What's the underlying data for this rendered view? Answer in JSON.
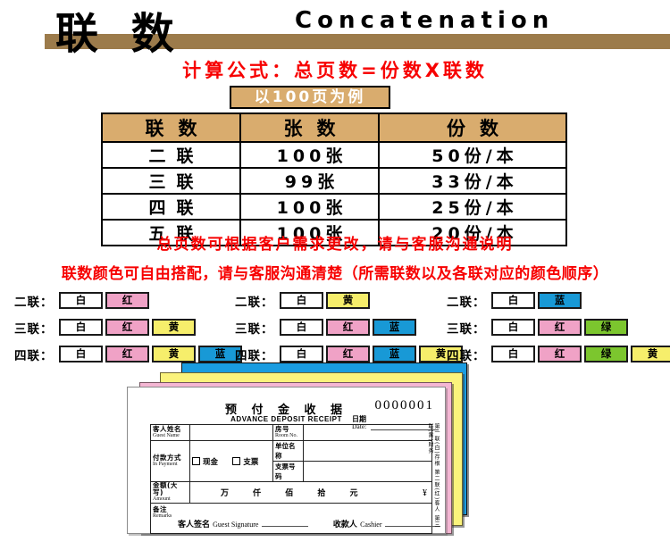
{
  "header": {
    "title_cn": "联 数",
    "title_en": "Concatenation",
    "bar_color": "#9c7b4b"
  },
  "formula": "计算公式：总页数=份数X联数",
  "example_badge": "以100页为例",
  "table": {
    "headers": [
      "联数",
      "张数",
      "份数"
    ],
    "rows": [
      [
        "二联",
        "100张",
        "50份/本"
      ],
      [
        "三联",
        "99张",
        "33份/本"
      ],
      [
        "四联",
        "100张",
        "25份/本"
      ],
      [
        "五联",
        "100张",
        "20份/本"
      ]
    ]
  },
  "notes": [
    "总页数可根据客户需求更改，请与客服沟通说明",
    "联数颜色可自由搭配，请与客服沟通清楚（所需联数以及各联对应的颜色顺序）"
  ],
  "color_map": {
    "白": "#ffffff",
    "红": "#f0a2c6",
    "黄": "#f6ee6b",
    "蓝": "#1899d6",
    "绿": "#7cc62e"
  },
  "swatch_columns": [
    {
      "groups": [
        {
          "label": "二联：",
          "colors": [
            "白",
            "红"
          ]
        },
        {
          "label": "三联：",
          "colors": [
            "白",
            "红",
            "黄"
          ]
        },
        {
          "label": "四联：",
          "colors": [
            "白",
            "红",
            "黄",
            "蓝"
          ]
        }
      ]
    },
    {
      "groups": [
        {
          "label": "二联：",
          "colors": [
            "白",
            "黄"
          ]
        },
        {
          "label": "三联：",
          "colors": [
            "白",
            "红",
            "蓝"
          ]
        },
        {
          "label": "四联：",
          "colors": [
            "白",
            "红",
            "蓝",
            "黄"
          ]
        }
      ]
    },
    {
      "groups": [
        {
          "label": "二联：",
          "colors": [
            "白",
            "蓝"
          ]
        },
        {
          "label": "三联：",
          "colors": [
            "白",
            "红",
            "绿"
          ]
        },
        {
          "label": "四联：",
          "colors": [
            "白",
            "红",
            "绿",
            "黄"
          ]
        }
      ]
    }
  ],
  "receipt": {
    "sheet_colors": {
      "blue": "#1a9ce0",
      "yellow": "#fbf37c",
      "pink": "#f4b6d3",
      "white": "#ffffff"
    },
    "title_cn": "预 付 金 收 据",
    "title_en": "ADVANCE DEPOSIT RECEIPT",
    "serial": "0000001",
    "date_cn": "日期",
    "date_en": "Date:",
    "fields": {
      "guest_name_cn": "客人姓名",
      "guest_name_en": "Guest Name",
      "room_cn": "房号",
      "room_en": "Room No.",
      "payment_cn": "付款方式",
      "payment_en": "In Payment",
      "cash": "现金",
      "cheque": "支票",
      "unit_name": "单位名称",
      "cheque_no": "支票号码",
      "amount_cn": "金额(大写)",
      "amount_en": "Amount",
      "digits": "万 仟 佰 拾 元",
      "currency": "¥",
      "remarks_cn": "备注",
      "remarks_en": "Remarks",
      "sign_cn": "客人签名",
      "sign_en": "Guest Signature",
      "cashier_cn": "收款人",
      "cashier_en": "Cashier"
    },
    "side_note": "第一联(白)存根 第二联(红)客人 第三联(黄)财务"
  }
}
